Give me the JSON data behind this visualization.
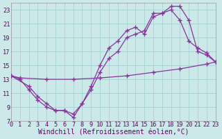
{
  "bg_color": "#cce8e8",
  "line_color": "#883399",
  "grid_color": "#aad4d4",
  "xlabel": "Windchill (Refroidissement éolien,°C)",
  "xlabel_fontsize": 7.0,
  "tick_fontsize": 6.2,
  "xlim": [
    0,
    23
  ],
  "ylim": [
    7,
    24
  ],
  "yticks": [
    7,
    9,
    11,
    13,
    15,
    17,
    19,
    21,
    23
  ],
  "xticks": [
    0,
    1,
    2,
    3,
    4,
    5,
    6,
    7,
    8,
    9,
    10,
    11,
    12,
    13,
    14,
    15,
    16,
    17,
    18,
    19,
    20,
    21,
    22,
    23
  ],
  "line1_x": [
    0,
    1,
    4,
    7,
    10,
    13,
    16,
    19,
    22,
    23
  ],
  "line1_y": [
    13.5,
    13.2,
    13.0,
    13.0,
    13.2,
    13.5,
    14.0,
    14.5,
    15.2,
    15.5
  ],
  "line2_x": [
    0,
    1,
    2,
    3,
    4,
    5,
    6,
    7,
    8,
    9,
    10,
    11,
    12,
    13,
    14,
    15,
    16,
    17,
    18,
    19,
    20,
    21,
    22,
    23
  ],
  "line2_y": [
    13.5,
    13.0,
    11.5,
    10.0,
    9.0,
    8.5,
    8.5,
    7.5,
    9.5,
    12.0,
    15.0,
    17.5,
    18.5,
    20.0,
    20.5,
    19.5,
    22.0,
    22.5,
    23.5,
    23.5,
    21.5,
    17.0,
    16.5,
    15.5
  ],
  "line3_x": [
    0,
    2,
    3,
    4,
    5,
    6,
    7,
    8,
    9,
    10,
    11,
    12,
    13,
    14,
    15,
    16,
    17,
    18,
    19,
    20,
    21,
    22,
    23
  ],
  "line3_y": [
    13.5,
    12.0,
    10.5,
    9.5,
    8.5,
    8.5,
    8.0,
    9.5,
    11.5,
    14.0,
    16.0,
    17.0,
    19.0,
    19.5,
    20.0,
    22.5,
    22.5,
    23.0,
    21.5,
    18.5,
    17.5,
    16.8,
    15.5
  ],
  "tc": "#660066"
}
